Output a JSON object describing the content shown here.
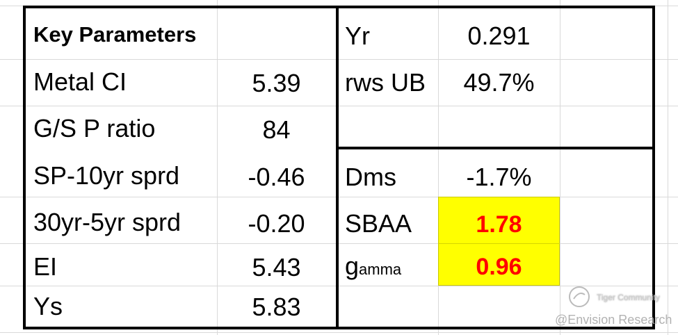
{
  "header": {
    "title": "Key Parameters"
  },
  "left_table": {
    "rows": [
      {
        "label": "Metal CI",
        "value": "5.39"
      },
      {
        "label": "G/S P ratio",
        "value": "84"
      },
      {
        "label": "SP-10yr sprd",
        "value": "-0.46"
      },
      {
        "label": "30yr-5yr sprd",
        "value": "-0.20"
      },
      {
        "label": "EI",
        "value": "5.43"
      },
      {
        "label": "Ys",
        "value": "5.83"
      }
    ]
  },
  "right_top": {
    "rows": [
      {
        "label": "Yr",
        "value": "0.291"
      },
      {
        "label": "rws UB",
        "value": "49.7%"
      }
    ]
  },
  "right_bottom": {
    "rows": [
      {
        "label": "Dms",
        "value": "-1.7%"
      },
      {
        "label": "SBAA",
        "value": "1.78"
      },
      {
        "label": "g",
        "label_small": "amma",
        "value": "0.96"
      }
    ]
  },
  "watermark": {
    "brand": "Tiger Community",
    "author": "@Envision Research"
  }
}
